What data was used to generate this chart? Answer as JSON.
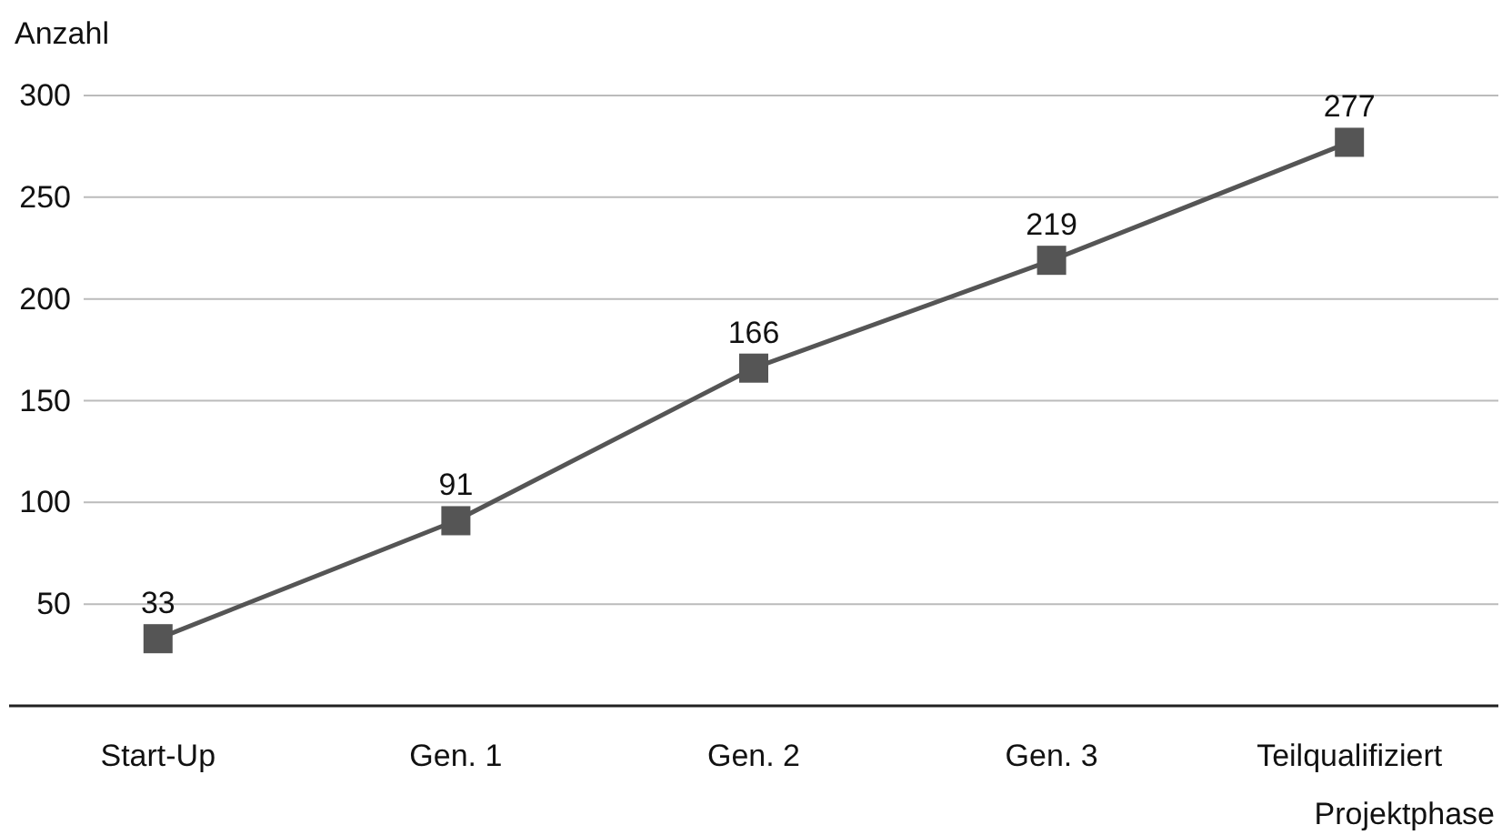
{
  "chart_data": {
    "type": "line",
    "xlabel": "Projektphase",
    "ylabel": "Anzahl",
    "categories": [
      "Start-Up",
      "Gen. 1",
      "Gen. 2",
      "Gen. 3",
      "Teilqualifiziert"
    ],
    "series": [
      {
        "color": "#555555",
        "values": [
          33,
          91,
          166,
          219,
          277
        ]
      }
    ],
    "ylim": [
      0,
      300
    ],
    "yticks": [
      50,
      100,
      150,
      200,
      250,
      300
    ],
    "grid": "y",
    "marker": "square",
    "line_style": "solid",
    "data_labels": true
  }
}
